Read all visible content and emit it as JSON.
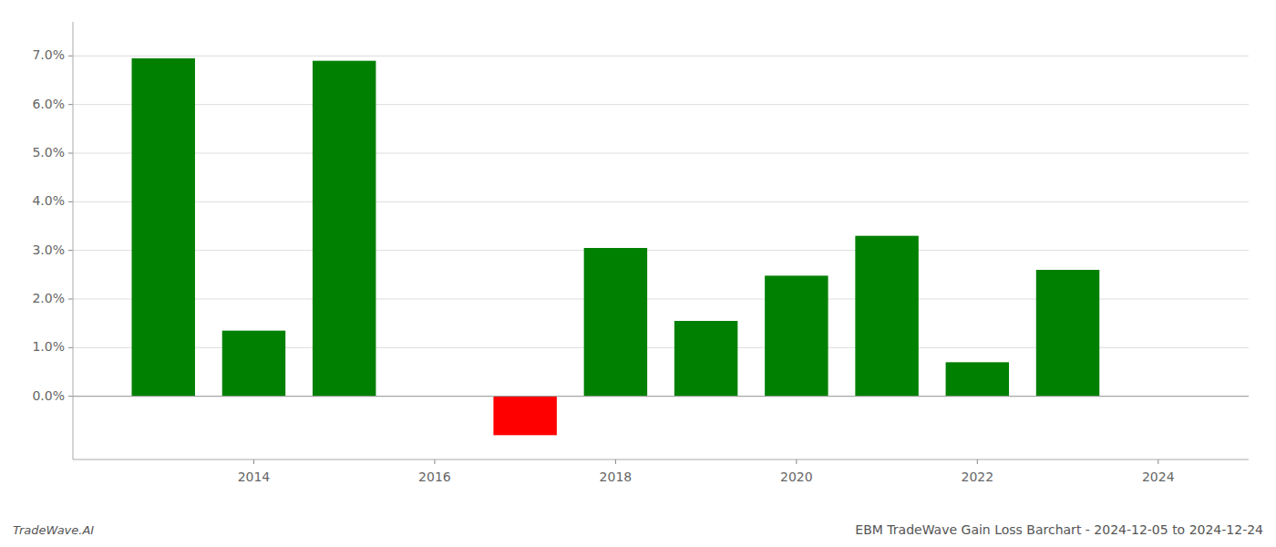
{
  "chart_data": {
    "type": "bar",
    "title": "EBM TradeWave Gain Loss Barchart - 2024-12-05 to 2024-12-24",
    "annotations": [
      "TradeWave.AI"
    ],
    "x": [
      2013,
      2014,
      2015,
      2016,
      2017,
      2018,
      2019,
      2020,
      2021,
      2022,
      2023
    ],
    "values": [
      0.0695,
      0.0135,
      0.069,
      0.0,
      -0.008,
      0.0305,
      0.0155,
      0.0248,
      0.033,
      0.007,
      0.026
    ],
    "colors": [
      "#008000",
      "#008000",
      "#008000",
      "#008000",
      "#ff0000",
      "#008000",
      "#008000",
      "#008000",
      "#008000",
      "#008000",
      "#008000"
    ],
    "xlim": [
      2012.0,
      2025.0
    ],
    "xticks": [
      2014,
      2016,
      2018,
      2020,
      2022,
      2024
    ],
    "ylim": [
      -0.013,
      0.077
    ],
    "yticks": [
      {
        "value": 0.0,
        "label": "0.0%"
      },
      {
        "value": 0.01,
        "label": "1.0%"
      },
      {
        "value": 0.02,
        "label": "2.0%"
      },
      {
        "value": 0.03,
        "label": "3.0%"
      },
      {
        "value": 0.04,
        "label": "4.0%"
      },
      {
        "value": 0.05,
        "label": "5.0%"
      },
      {
        "value": 0.06,
        "label": "6.0%"
      },
      {
        "value": 0.07,
        "label": "7.0%"
      }
    ],
    "grid": true
  }
}
